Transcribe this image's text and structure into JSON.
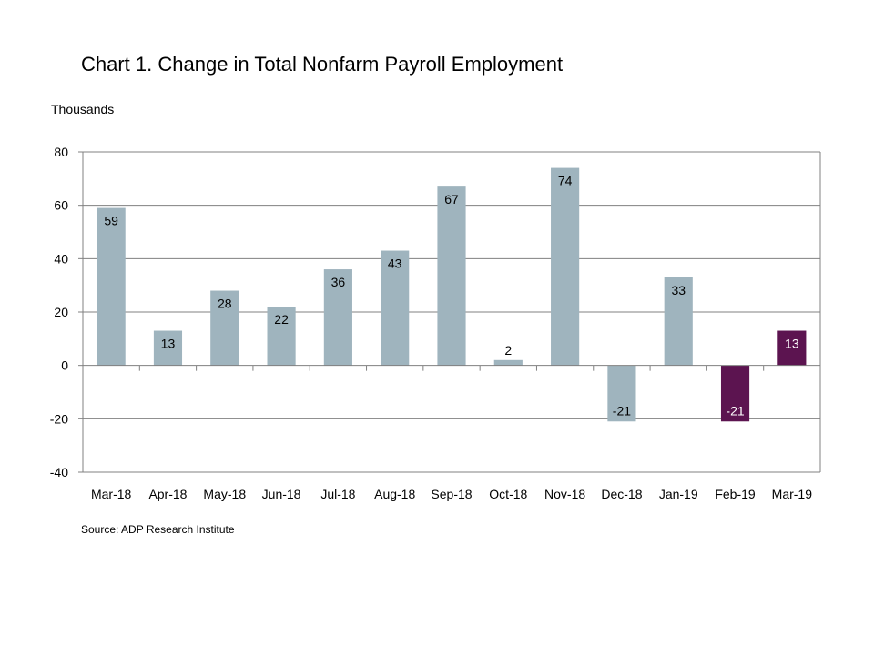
{
  "title": "Chart 1. Change in Total Nonfarm Payroll Employment",
  "unit_label": "Thousands",
  "source": "Source: ADP Research Institute",
  "chart_data": {
    "type": "bar",
    "categories": [
      "Mar-18",
      "Apr-18",
      "May-18",
      "Jun-18",
      "Jul-18",
      "Aug-18",
      "Sep-18",
      "Oct-18",
      "Nov-18",
      "Dec-18",
      "Jan-19",
      "Feb-19",
      "Mar-19"
    ],
    "values": [
      59,
      13,
      28,
      22,
      36,
      43,
      67,
      2,
      74,
      -21,
      33,
      -21,
      13
    ],
    "data_labels": [
      "59",
      "13",
      "28",
      "22",
      "36",
      "43",
      "67",
      "2",
      "74",
      "-21",
      "33",
      "-21",
      "13"
    ],
    "bar_colors": [
      "#9fb4be",
      "#9fb4be",
      "#9fb4be",
      "#9fb4be",
      "#9fb4be",
      "#9fb4be",
      "#9fb4be",
      "#9fb4be",
      "#9fb4be",
      "#9fb4be",
      "#9fb4be",
      "#5c1450",
      "#5c1450"
    ],
    "label_colors": [
      "#000000",
      "#000000",
      "#000000",
      "#000000",
      "#000000",
      "#000000",
      "#000000",
      "#000000",
      "#000000",
      "#000000",
      "#000000",
      "#ffffff",
      "#ffffff"
    ],
    "yticks": [
      80,
      60,
      40,
      20,
      0,
      -20,
      -40
    ],
    "ylim": [
      -40,
      80
    ],
    "grid": true,
    "gridline_color": "#808080",
    "legend": "none"
  }
}
